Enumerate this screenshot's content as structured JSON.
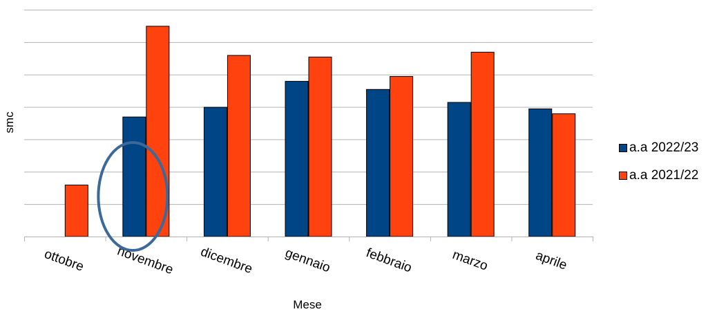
{
  "chart_data": {
    "type": "bar",
    "title": "",
    "xlabel": "Mese",
    "ylabel": "smc",
    "ylim": [
      0,
      7
    ],
    "grid": true,
    "legend_position": "right",
    "categories": [
      "ottobre",
      "novembre",
      "dicembre",
      "gennaio",
      "febbraio",
      "marzo",
      "aprile"
    ],
    "series": [
      {
        "name": "a.a 2022/23",
        "color": "#004586",
        "values": [
          null,
          3.7,
          4.0,
          4.8,
          4.55,
          4.15,
          3.95
        ]
      },
      {
        "name": "a.a 2021/22",
        "color": "#ff420e",
        "values": [
          1.6,
          6.5,
          5.6,
          5.55,
          4.95,
          5.7,
          3.8
        ]
      }
    ],
    "annotation": {
      "type": "ellipse",
      "around_category": "novembre",
      "color": "#3b6a9a"
    }
  }
}
